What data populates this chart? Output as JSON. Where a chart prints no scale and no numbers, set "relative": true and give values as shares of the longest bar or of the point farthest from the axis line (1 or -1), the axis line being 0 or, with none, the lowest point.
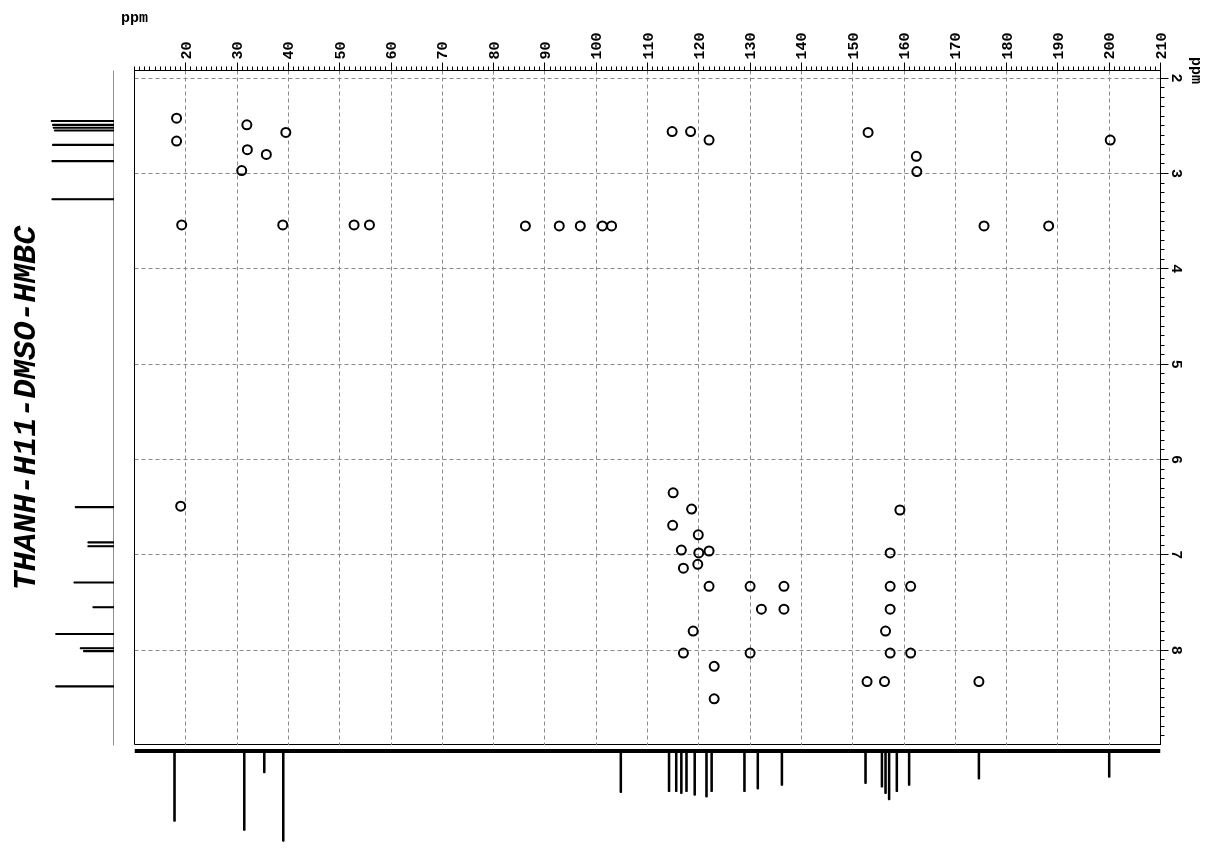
{
  "chart_data": [
    {
      "type": "scatter",
      "title": "THANH-H11-DMSO-HMBC",
      "xlabel": "ppm",
      "ylabel": "ppm",
      "x": [
        18.2,
        18.2,
        31.9,
        32.0,
        35.7,
        30.9,
        39.5,
        19.2,
        38.9,
        52.8,
        55.8,
        86.2,
        92.8,
        96.9,
        101.2,
        103.0,
        114.8,
        118.4,
        122.0,
        153.0,
        162.4,
        162.5,
        200.2,
        175.6,
        188.2,
        19.0,
        115.0,
        118.6,
        114.9,
        119.9,
        116.6,
        120.0,
        122.0,
        117.0,
        119.8,
        122.0,
        130.0,
        136.6,
        132.2,
        136.6,
        118.9,
        117.0,
        130.0,
        123.0,
        123.0,
        159.2,
        157.3,
        157.3,
        161.3,
        157.3,
        156.4,
        157.3,
        161.3,
        152.8,
        156.2,
        174.6
      ],
      "values": [
        2.42,
        2.66,
        2.49,
        2.75,
        2.8,
        2.97,
        2.57,
        3.54,
        3.54,
        3.54,
        3.54,
        3.55,
        3.55,
        3.55,
        3.55,
        3.55,
        2.56,
        2.56,
        2.65,
        2.57,
        2.82,
        2.98,
        2.65,
        3.55,
        3.55,
        6.49,
        6.35,
        6.52,
        6.69,
        6.79,
        6.95,
        6.98,
        6.96,
        7.14,
        7.1,
        7.33,
        7.33,
        7.33,
        7.57,
        7.57,
        7.8,
        8.03,
        8.03,
        8.17,
        8.51,
        6.53,
        6.98,
        7.33,
        7.33,
        7.57,
        7.8,
        8.03,
        8.03,
        8.33,
        8.33,
        8.33
      ],
      "color": "#000000",
      "xlim": [
        10,
        210
      ],
      "ylim": [
        9.0,
        1.92
      ],
      "xticks": [
        20,
        30,
        40,
        50,
        60,
        70,
        80,
        90,
        100,
        110,
        120,
        130,
        140,
        150,
        160,
        170,
        180,
        190,
        200,
        210
      ],
      "yticks": [
        2,
        3,
        4,
        5,
        6,
        7,
        8
      ],
      "grid": true,
      "marker": "circle"
    },
    {
      "type": "bar",
      "orientation": "horizontal",
      "relative": true,
      "x": [
        2.45,
        2.49,
        2.52,
        2.55,
        2.7,
        2.87,
        3.27,
        6.5,
        6.87,
        6.91,
        7.29,
        7.55,
        7.83,
        7.98,
        8.01,
        8.38
      ],
      "values": [
        -1,
        -0.98,
        -0.97,
        -0.95,
        -0.98,
        -0.99,
        -0.99,
        -0.62,
        -0.42,
        -0.42,
        -0.64,
        -0.34,
        -0.93,
        -0.54,
        -0.49,
        -0.93
      ],
      "color": "#000000",
      "ylim": [
        9.0,
        1.92
      ],
      "tick_labels": false
    },
    {
      "type": "bar",
      "relative": true,
      "x": [
        17.8,
        31.4,
        35.3,
        39.0,
        104.8,
        114.2,
        115.6,
        116.6,
        117.6,
        119.2,
        121.5,
        122.5,
        128.9,
        131.5,
        136.2,
        152.5,
        155.7,
        156.4,
        157.1,
        158.6,
        161.0,
        174.6,
        200.0
      ],
      "values": [
        -0.78,
        -0.88,
        -0.24,
        -1,
        -0.46,
        -0.45,
        -0.45,
        -0.47,
        -0.45,
        -0.49,
        -0.51,
        -0.45,
        -0.45,
        -0.42,
        -0.38,
        -0.36,
        -0.4,
        -0.47,
        -0.54,
        -0.45,
        -0.38,
        -0.31,
        -0.29
      ],
      "color": "#000000",
      "xlim": [
        10,
        210
      ],
      "tick_labels": false
    }
  ]
}
